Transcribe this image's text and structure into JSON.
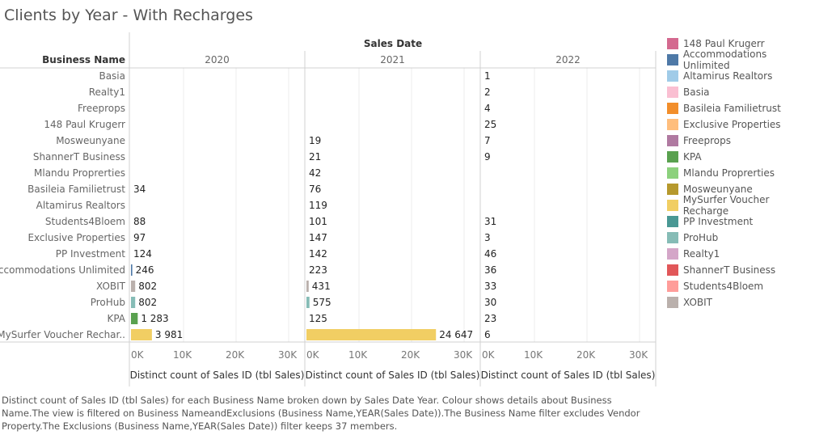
{
  "title": "Clients by Year - With Recharges",
  "caption": "Distinct count of Sales ID (tbl Sales) for each Business Name broken down by Sales Date Year. Colour shows details about Business Name.The view is filtered on Business NameandExclusions (Business Name,YEAR(Sales Date)).The Business Name filter excludes Vendor Property.The Exclusions (Business Name,YEAR(Sales Date)) filter keeps 37 members.",
  "chart_data": {
    "type": "bar",
    "orientation": "horizontal",
    "column_header": "Sales Date",
    "row_header": "Business Name",
    "panels": [
      "2020",
      "2021",
      "2022"
    ],
    "xlabel": "Distinct count of Sales ID (tbl Sales)",
    "xlim": [
      0,
      30000
    ],
    "xticks": [
      "0K",
      "10K",
      "20K",
      "30K"
    ],
    "xtick_values": [
      0,
      10000,
      20000,
      30000
    ],
    "grid": true,
    "categories": [
      "Basia",
      "Realty1",
      "Freeprops",
      "148 Paul Krugerr",
      "Mosweunyane",
      "ShannerT Business",
      "Mlandu Proprerties",
      "Basileia Familietrust",
      "Altamirus Realtors",
      "Students4Bloem",
      "Exclusive Properties",
      "PP Investment",
      "Accommodations Unlimited",
      "XOBIT",
      "ProHub",
      "KPA",
      "MySurfer Voucher Rechar.."
    ],
    "series": [
      {
        "name": "2020",
        "values": [
          null,
          null,
          null,
          null,
          null,
          null,
          null,
          34,
          null,
          88,
          97,
          124,
          246,
          802,
          802,
          1283,
          3981
        ],
        "labels": [
          null,
          null,
          null,
          null,
          null,
          null,
          null,
          "34",
          null,
          "88",
          "97",
          "124",
          "246",
          "802",
          "802",
          "1 283",
          "3 981"
        ]
      },
      {
        "name": "2021",
        "values": [
          null,
          null,
          null,
          null,
          19,
          21,
          42,
          76,
          119,
          101,
          147,
          142,
          223,
          431,
          575,
          125,
          24647
        ],
        "labels": [
          null,
          null,
          null,
          null,
          "19",
          "21",
          "42",
          "76",
          "119",
          "101",
          "147",
          "142",
          "223",
          "431",
          "575",
          "125",
          "24 647"
        ]
      },
      {
        "name": "2022",
        "values": [
          1,
          2,
          4,
          25,
          7,
          9,
          null,
          null,
          null,
          31,
          3,
          46,
          36,
          33,
          30,
          23,
          6
        ],
        "labels": [
          "1",
          "2",
          "4",
          "25",
          "7",
          "9",
          null,
          null,
          null,
          "31",
          "3",
          "46",
          "36",
          "33",
          "30",
          "23",
          "6"
        ]
      }
    ],
    "legend": {
      "placement": "right",
      "items": [
        {
          "name": "148 Paul Krugerr",
          "color": "#d4698f"
        },
        {
          "name": "Accommodations Unlimited",
          "color": "#4e79a7"
        },
        {
          "name": "Altamirus Realtors",
          "color": "#a0cbe8"
        },
        {
          "name": "Basia",
          "color": "#fabfd2"
        },
        {
          "name": "Basileia Familietrust",
          "color": "#f28e2b"
        },
        {
          "name": "Exclusive Properties",
          "color": "#ffbe7d"
        },
        {
          "name": "Freeprops",
          "color": "#b07aa1"
        },
        {
          "name": "KPA",
          "color": "#59a14f"
        },
        {
          "name": "Mlandu Proprerties",
          "color": "#8cd17d"
        },
        {
          "name": "Mosweunyane",
          "color": "#b6992d"
        },
        {
          "name": "MySurfer Voucher Recharge",
          "color": "#f1ce63"
        },
        {
          "name": "PP Investment",
          "color": "#499894"
        },
        {
          "name": "ProHub",
          "color": "#86bcb6"
        },
        {
          "name": "Realty1",
          "color": "#d4a6c8"
        },
        {
          "name": "ShannerT Business",
          "color": "#e15759"
        },
        {
          "name": "Students4Bloem",
          "color": "#ff9d9a"
        },
        {
          "name": "XOBIT",
          "color": "#bab0ac"
        }
      ]
    },
    "category_colors": [
      "#fabfd2",
      "#d4a6c8",
      "#b07aa1",
      "#d4698f",
      "#b6992d",
      "#e15759",
      "#8cd17d",
      "#f28e2b",
      "#a0cbe8",
      "#ff9d9a",
      "#ffbe7d",
      "#499894",
      "#4e79a7",
      "#bab0ac",
      "#86bcb6",
      "#59a14f",
      "#f1ce63"
    ]
  }
}
